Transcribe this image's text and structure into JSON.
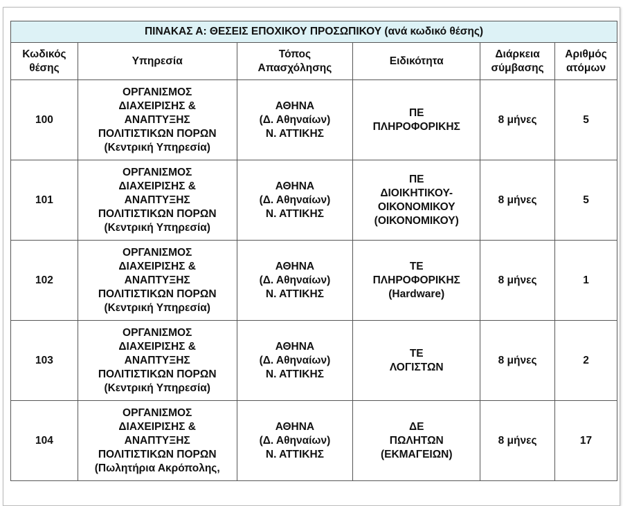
{
  "table": {
    "title": "ΠΙΝΑΚΑΣ Α: ΘΕΣΕΙΣ ΕΠΟΧΙΚΟΥ ΠΡΟΣΩΠΙΚΟΥ (ανά κωδικό θέσης)",
    "headers": [
      [
        "Κωδικός",
        "θέσης"
      ],
      [
        "Υπηρεσία"
      ],
      [
        "Τόπος",
        "Απασχόλησης"
      ],
      [
        "Ειδικότητα"
      ],
      [
        "Διάρκεια",
        "σύμβασης"
      ],
      [
        "Αριθμός",
        "ατόμων"
      ]
    ],
    "rows": [
      [
        [
          "100"
        ],
        [
          "ΟΡΓΑΝΙΣΜΟΣ",
          "ΔΙΑΧΕΙΡΙΣΗΣ &",
          "ΑΝΑΠΤΥΞΗΣ",
          "ΠΟΛΙΤΙΣΤΙΚΩΝ ΠΟΡΩΝ",
          "(Κεντρική Υπηρεσία)"
        ],
        [
          "ΑΘΗΝΑ",
          "(Δ. Αθηναίων)",
          "Ν. ΑΤΤΙΚΗΣ"
        ],
        [
          "ΠΕ",
          "ΠΛΗΡΟΦΟΡΙΚΗΣ"
        ],
        [
          "8 μήνες"
        ],
        [
          "5"
        ]
      ],
      [
        [
          "101"
        ],
        [
          "ΟΡΓΑΝΙΣΜΟΣ",
          "ΔΙΑΧΕΙΡΙΣΗΣ &",
          "ΑΝΑΠΤΥΞΗΣ",
          "ΠΟΛΙΤΙΣΤΙΚΩΝ ΠΟΡΩΝ",
          "(Κεντρική Υπηρεσία)"
        ],
        [
          "ΑΘΗΝΑ",
          "(Δ. Αθηναίων)",
          "Ν. ΑΤΤΙΚΗΣ"
        ],
        [
          "ΠΕ",
          "ΔΙΟΙΚΗΤΙΚΟΥ-",
          "ΟΙΚΟΝΟΜΙΚΟΥ",
          "(ΟΙΚΟΝΟΜΙΚΟΥ)"
        ],
        [
          "8 μήνες"
        ],
        [
          "5"
        ]
      ],
      [
        [
          "102"
        ],
        [
          "ΟΡΓΑΝΙΣΜΟΣ",
          "ΔΙΑΧΕΙΡΙΣΗΣ &",
          "ΑΝΑΠΤΥΞΗΣ",
          "ΠΟΛΙΤΙΣΤΙΚΩΝ ΠΟΡΩΝ",
          "(Κεντρική Υπηρεσία)"
        ],
        [
          "ΑΘΗΝΑ",
          "(Δ. Αθηναίων)",
          "Ν. ΑΤΤΙΚΗΣ"
        ],
        [
          "ΤΕ",
          "ΠΛΗΡΟΦΟΡΙΚΗΣ",
          "(Hardware)"
        ],
        [
          "8 μήνες"
        ],
        [
          "1"
        ]
      ],
      [
        [
          "103"
        ],
        [
          "ΟΡΓΑΝΙΣΜΟΣ",
          "ΔΙΑΧΕΙΡΙΣΗΣ &",
          "ΑΝΑΠΤΥΞΗΣ",
          "ΠΟΛΙΤΙΣΤΙΚΩΝ ΠΟΡΩΝ",
          "(Κεντρική Υπηρεσία)"
        ],
        [
          "ΑΘΗΝΑ",
          "(Δ. Αθηναίων)",
          "Ν. ΑΤΤΙΚΗΣ"
        ],
        [
          "ΤΕ",
          "ΛΟΓΙΣΤΩΝ"
        ],
        [
          "8 μήνες"
        ],
        [
          "2"
        ]
      ],
      [
        [
          "104"
        ],
        [
          "ΟΡΓΑΝΙΣΜΟΣ",
          "ΔΙΑΧΕΙΡΙΣΗΣ &",
          "ΑΝΑΠΤΥΞΗΣ",
          "ΠΟΛΙΤΙΣΤΙΚΩΝ ΠΟΡΩΝ",
          "(Πωλητήρια Ακρόπολης,"
        ],
        [
          "ΑΘΗΝΑ",
          "(Δ. Αθηναίων)",
          "Ν. ΑΤΤΙΚΗΣ"
        ],
        [
          "ΔΕ",
          "ΠΩΛΗΤΩΝ",
          "(ΕΚΜΑΓΕΙΩΝ)"
        ],
        [
          "8 μήνες"
        ],
        [
          "17"
        ]
      ]
    ]
  }
}
